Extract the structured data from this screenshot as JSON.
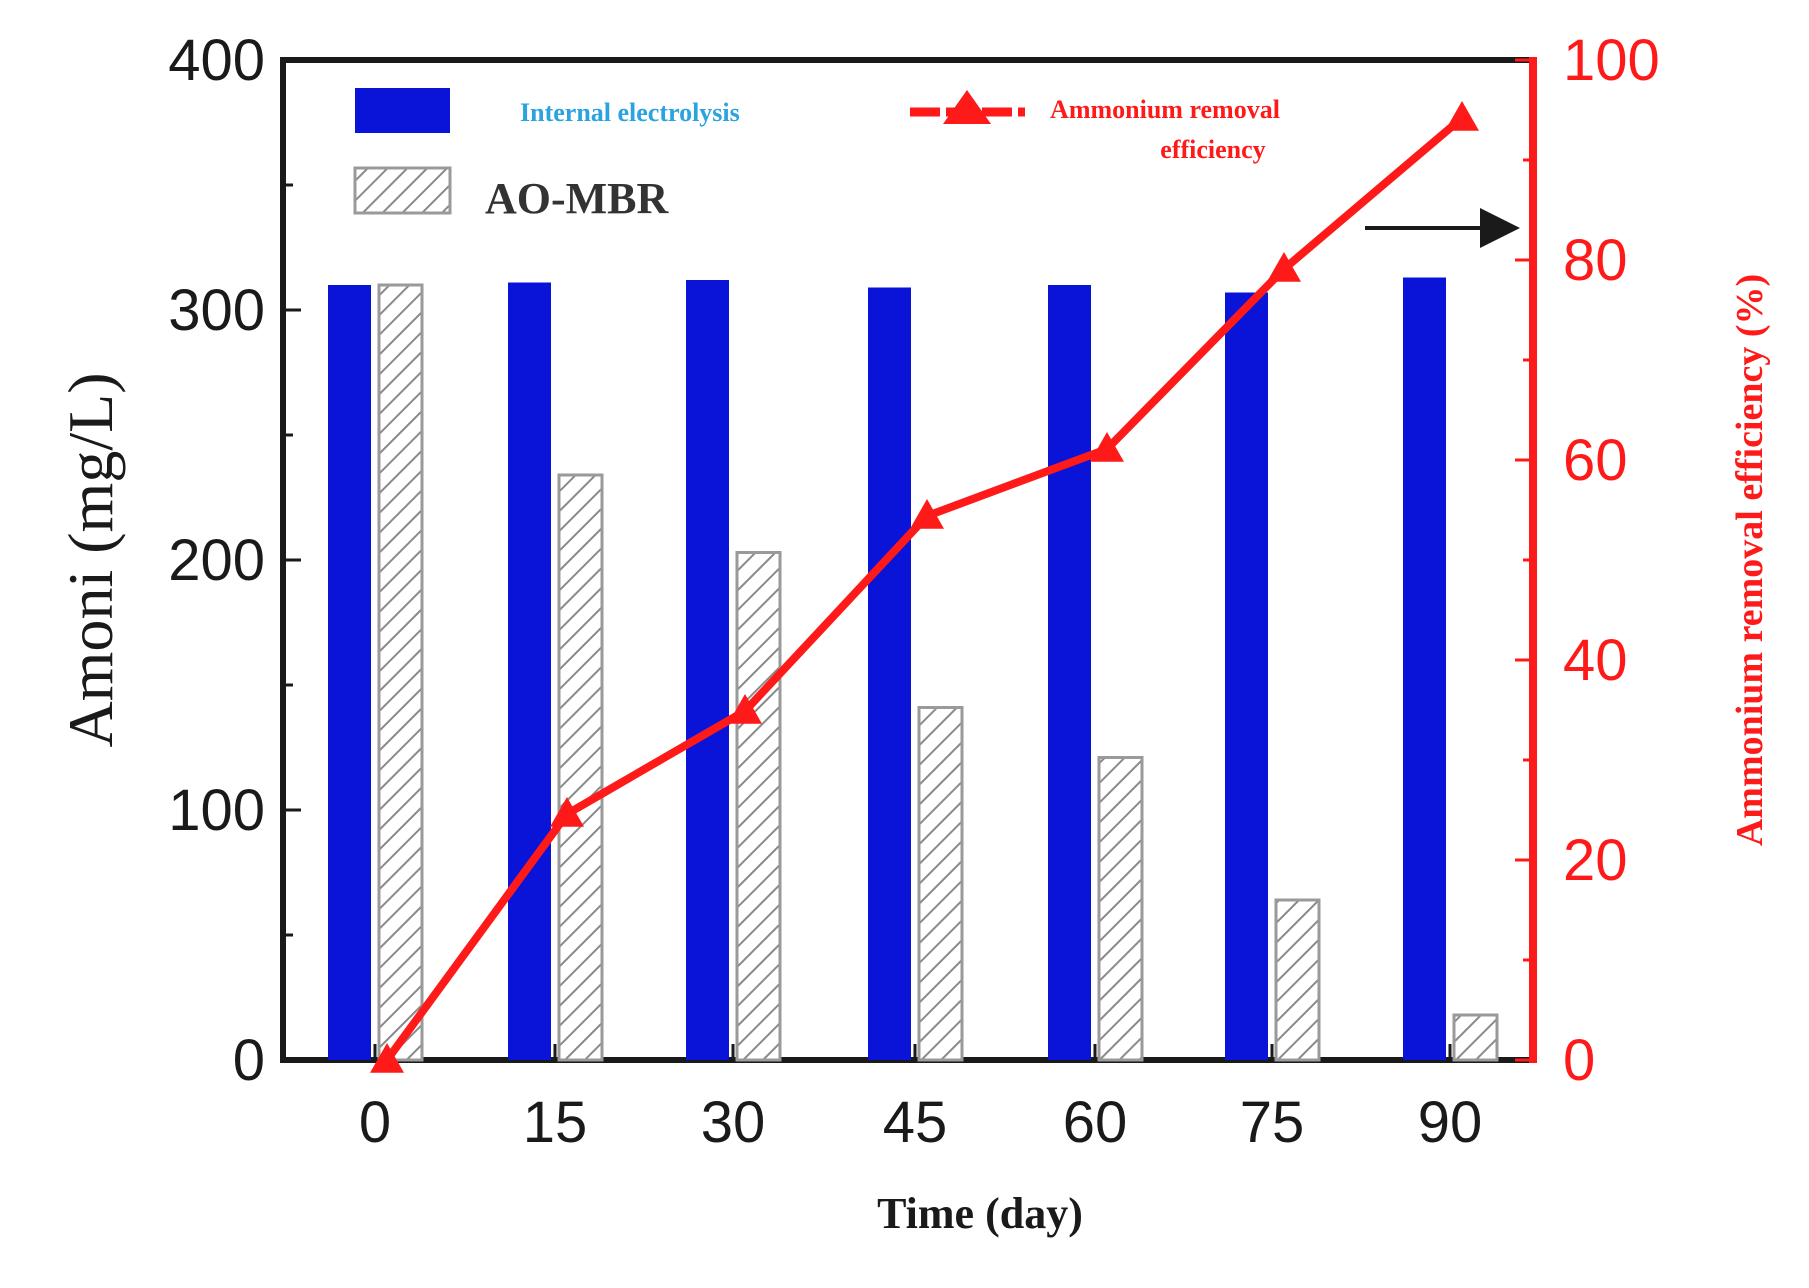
{
  "chart_data": {
    "type": "bar",
    "title": "",
    "xlabel": "Time (day)",
    "ylabel": "Amoni (mg/L)",
    "ylabel_right": "Ammonium removal efficiency (%)",
    "categories": [
      "0",
      "15",
      "30",
      "45",
      "60",
      "75",
      "90"
    ],
    "ylim": [
      0,
      400
    ],
    "y_ticks": [
      "0",
      "100",
      "200",
      "300",
      "400"
    ],
    "ylim_right": [
      0,
      100
    ],
    "y_ticks_right": [
      "0",
      "20",
      "40",
      "60",
      "80",
      "100"
    ],
    "series": [
      {
        "name": "Internal electrolysis",
        "kind": "bar",
        "axis": "left",
        "color": "#0a14d9",
        "values": [
          310,
          311,
          312,
          309,
          310,
          307,
          313
        ]
      },
      {
        "name": "AO-MBR",
        "kind": "bar-hatched",
        "axis": "left",
        "color": "#a0a0a0",
        "values": [
          310,
          234,
          203,
          141,
          121,
          64,
          18
        ]
      },
      {
        "name": "Ammonium removal efficiency",
        "kind": "line-triangle",
        "axis": "right",
        "color": "#ff1a1a",
        "values": [
          0,
          24.6,
          34.9,
          54.4,
          61.1,
          79.1,
          94.2
        ]
      }
    ],
    "legend": {
      "internal_label": "Internal electrolysis",
      "aombr_label": "AO-MBR",
      "efficiency_label_line1": "Ammonium removal",
      "efficiency_label_line2": "efficiency"
    },
    "axis_colors": {
      "left": "#1a1a1a",
      "right": "#ff1a1a",
      "legend_internal_text": "#2aa3e0"
    }
  }
}
